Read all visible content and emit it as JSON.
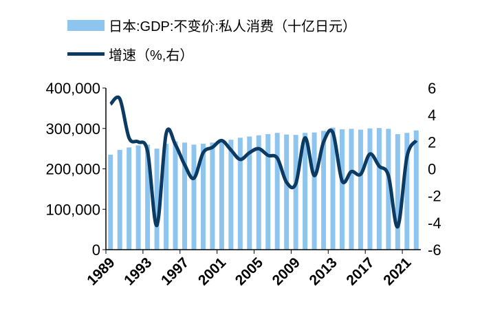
{
  "chart_data": {
    "type": "bar+line",
    "title": "",
    "x": [
      1989,
      1990,
      1991,
      1992,
      1993,
      1994,
      1995,
      1996,
      1997,
      1998,
      1999,
      2000,
      2001,
      2002,
      2003,
      2004,
      2005,
      2006,
      2007,
      2008,
      2009,
      2010,
      2011,
      2012,
      2013,
      2014,
      2015,
      2016,
      2017,
      2018,
      2019,
      2020,
      2021,
      2022
    ],
    "x_tick_labels": [
      "1989",
      "1993",
      "1997",
      "2001",
      "2005",
      "2009",
      "2013",
      "2017",
      "2021"
    ],
    "series": [
      {
        "name": "日本:GDP:不变价:私人消费（十亿日元）",
        "type": "bar",
        "axis": "left",
        "color": "#8EC5EE",
        "values": [
          235000,
          247000,
          253000,
          258000,
          260000,
          250000,
          262000,
          268000,
          265000,
          260000,
          262000,
          265000,
          268000,
          272000,
          277000,
          280000,
          283000,
          286000,
          289000,
          285000,
          284000,
          289000,
          290000,
          294000,
          302000,
          298000,
          299000,
          297000,
          300000,
          301000,
          299000,
          286000,
          289000,
          295000
        ]
      },
      {
        "name": "增速（%,右）",
        "type": "line",
        "axis": "right",
        "color": "#0B3A63",
        "values": [
          4.8,
          5.2,
          2.3,
          2.0,
          1.3,
          -4.2,
          2.6,
          1.8,
          0.3,
          -0.7,
          1.2,
          1.6,
          2.1,
          1.4,
          0.7,
          1.2,
          1.5,
          1.0,
          0.8,
          -1.0,
          -1.1,
          2.3,
          -0.5,
          2.0,
          2.7,
          -0.9,
          -0.2,
          -0.4,
          1.1,
          0.2,
          -0.5,
          -4.3,
          0.9,
          2.1
        ]
      }
    ],
    "left_axis": {
      "ylim": [
        0,
        400000
      ],
      "tick_labels": [
        "0",
        "100,000",
        "200,000",
        "300,000",
        "400,000"
      ],
      "ticks": [
        0,
        100000,
        200000,
        300000,
        400000
      ]
    },
    "right_axis": {
      "ylim": [
        -6,
        6
      ],
      "tick_labels": [
        "-6",
        "-4",
        "-2",
        "0",
        "2",
        "4",
        "6"
      ],
      "ticks": [
        -6,
        -4,
        -2,
        0,
        2,
        4,
        6
      ]
    },
    "legend_position": "top-left",
    "grid": false
  },
  "legend": {
    "bar_label": "日本:GDP:不变价:私人消费（十亿日元）",
    "line_label": "增速（%,右）"
  }
}
